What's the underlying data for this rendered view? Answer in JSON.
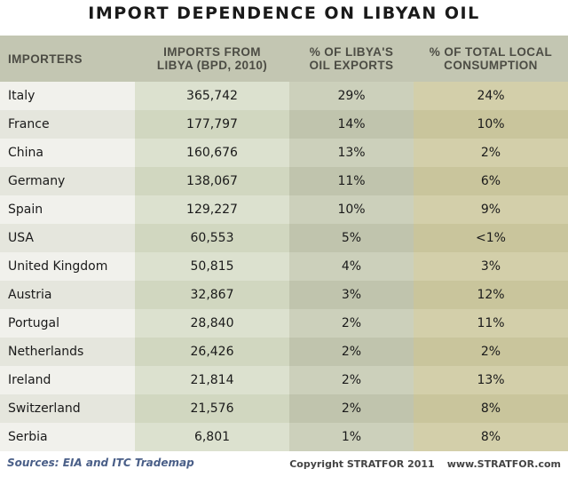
{
  "chart_data": {
    "type": "table",
    "title": "IMPORT DEPENDENCE ON LIBYAN OIL",
    "columns": [
      {
        "lines": [
          "IMPORTERS"
        ]
      },
      {
        "lines": [
          "IMPORTS FROM",
          "LIBYA (BPD, 2010)"
        ]
      },
      {
        "lines": [
          "% OF LIBYA'S",
          "OIL EXPORTS"
        ]
      },
      {
        "lines": [
          "% OF TOTAL LOCAL",
          "CONSUMPTION"
        ]
      }
    ],
    "rows": [
      [
        "Italy",
        "365,742",
        "29%",
        "24%"
      ],
      [
        "France",
        "177,797",
        "14%",
        "10%"
      ],
      [
        "China",
        "160,676",
        "13%",
        "2%"
      ],
      [
        "Germany",
        "138,067",
        "11%",
        "6%"
      ],
      [
        "Spain",
        "129,227",
        "10%",
        "9%"
      ],
      [
        "USA",
        "60,553",
        "5%",
        "<1%"
      ],
      [
        "United Kingdom",
        "50,815",
        "4%",
        "3%"
      ],
      [
        "Austria",
        "32,867",
        "3%",
        "12%"
      ],
      [
        "Portugal",
        "28,840",
        "2%",
        "11%"
      ],
      [
        "Netherlands",
        "26,426",
        "2%",
        "2%"
      ],
      [
        "Ireland",
        "21,814",
        "2%",
        "13%"
      ],
      [
        "Switzerland",
        "21,576",
        "2%",
        "8%"
      ],
      [
        "Serbia",
        "6,801",
        "1%",
        "8%"
      ]
    ]
  },
  "footer": {
    "sources": "Sources: EIA and ITC Trademap",
    "copyright": "Copyright STRATFOR 2011",
    "website": "www.STRATFOR.com"
  },
  "colors": {
    "header_bg": "#c3c6b2",
    "header_text": "#4c4c44",
    "sources_text": "#4a5f88"
  }
}
